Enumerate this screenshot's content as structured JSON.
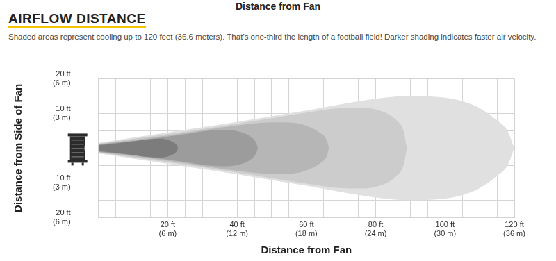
{
  "chart_data": {
    "type": "area",
    "title": "AIRFLOW DISTANCE",
    "subtitle": "Shaded areas represent cooling up to 120 feet (36.6 meters). That’s one-third the length of a football field! Darker shading indicates faster air velocity.",
    "annotations": [
      "Distance from Fan"
    ],
    "x_label": "Distance from Fan",
    "y_label": "Distance from Side of Fan",
    "xlim": [
      0,
      120
    ],
    "ylim": [
      -20,
      20
    ],
    "xticks": [
      {
        "value": 20,
        "label": "20 ft\n(6 m)"
      },
      {
        "value": 40,
        "label": "40 ft\n(12 m)"
      },
      {
        "value": 60,
        "label": "60 ft\n(18 m)"
      },
      {
        "value": 80,
        "label": "80 ft\n(24 m)"
      },
      {
        "value": 100,
        "label": "100 ft\n(30 m)"
      },
      {
        "value": 120,
        "label": "120 ft\n(36 m)"
      }
    ],
    "yticks": [
      {
        "value": -20,
        "label": "20 ft\n(6 m)"
      },
      {
        "value": -10,
        "label": "10 ft\n(3 m)"
      },
      {
        "value": 10,
        "label": "10 ft\n(3 m)"
      },
      {
        "value": 20,
        "label": "20 ft\n(6 m)"
      }
    ],
    "grid": true,
    "series": [
      {
        "color": "#e0e0e0",
        "x": [
          0,
          10,
          20,
          30,
          40,
          50,
          60,
          70,
          80,
          90,
          100,
          105,
          110,
          115,
          118,
          120
        ],
        "values": [
          1.5,
          3,
          4.5,
          6,
          7.5,
          9.2,
          10.8,
          12.6,
          14.2,
          15,
          14.5,
          13.5,
          11.5,
          8,
          5,
          0
        ],
        "lower": [
          -1.5,
          -3,
          -4.5,
          -6,
          -7.5,
          -9.2,
          -10.8,
          -12.6,
          -14.2,
          -15,
          -14.5,
          -13.5,
          -11.5,
          -8,
          -5,
          0
        ]
      },
      {
        "color": "#cccccc",
        "x": [
          0,
          20,
          40,
          60,
          70,
          76,
          82,
          86,
          88,
          89
        ],
        "values": [
          1.3,
          4,
          7,
          10.2,
          11.5,
          11.6,
          10.5,
          8,
          5,
          0
        ],
        "lower": [
          -1.3,
          -4,
          -7,
          -10.2,
          -11.5,
          -11.6,
          -10.5,
          -8,
          -5,
          0
        ]
      },
      {
        "color": "#b6b6b6",
        "x": [
          0,
          20,
          40,
          50,
          56,
          61,
          64,
          66,
          66.5
        ],
        "values": [
          1.1,
          3.6,
          6.5,
          7.4,
          7.3,
          6,
          4.3,
          2,
          0
        ],
        "lower": [
          -1.1,
          -3.6,
          -6.5,
          -7.4,
          -7.3,
          -6,
          -4.3,
          -2,
          0
        ]
      },
      {
        "color": "#9c9c9c",
        "x": [
          0,
          15,
          25,
          32,
          37,
          41,
          44,
          45.5,
          46
        ],
        "values": [
          1,
          2.6,
          4,
          5,
          5.2,
          4.6,
          3.2,
          1.5,
          0
        ],
        "lower": [
          -1,
          -2.6,
          -4,
          -5,
          -5.2,
          -4.6,
          -3.2,
          -1.5,
          0
        ]
      },
      {
        "color": "#7c7c7c",
        "x": [
          0,
          8,
          14,
          18,
          21,
          22.5,
          23
        ],
        "values": [
          0.8,
          1.7,
          2.5,
          2.7,
          2,
          1,
          0
        ],
        "lower": [
          -0.8,
          -1.7,
          -2.5,
          -2.7,
          -2,
          -1,
          0
        ]
      }
    ]
  }
}
